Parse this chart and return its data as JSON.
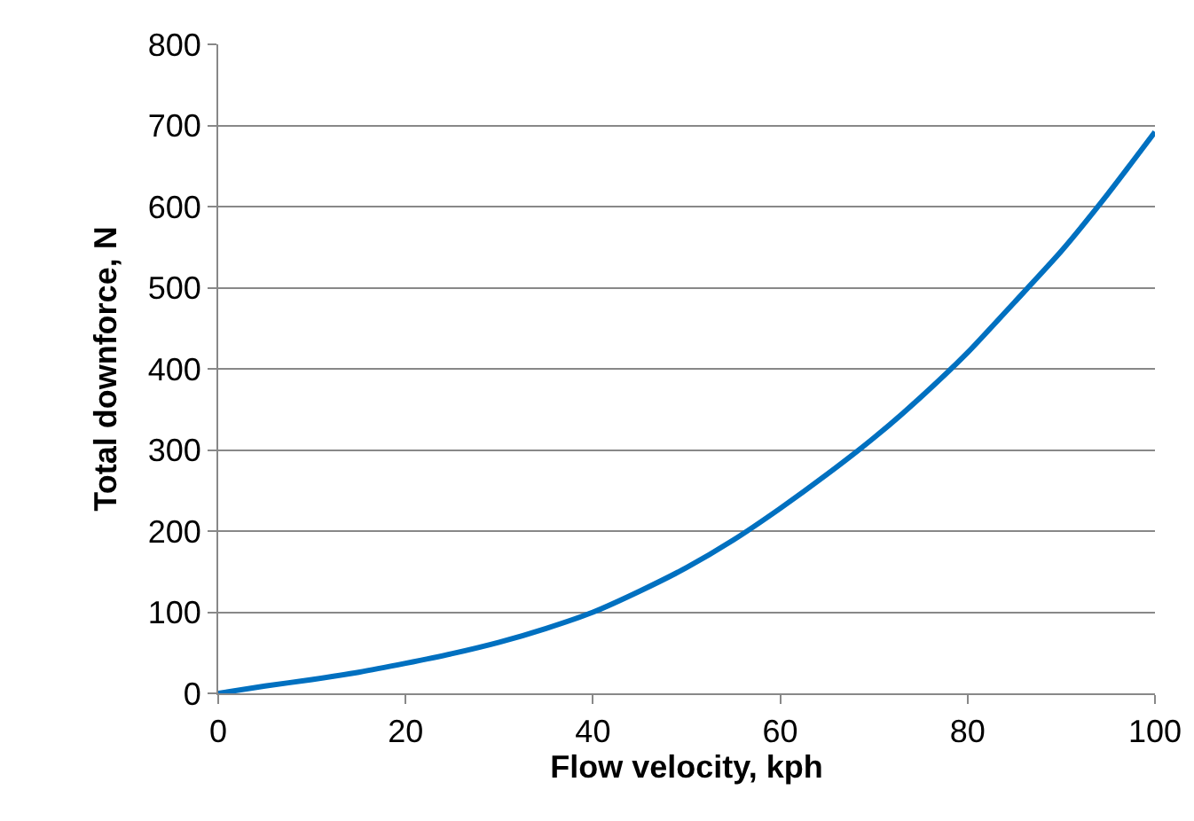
{
  "chart_data": {
    "type": "line",
    "xlabel": "Flow velocity, kph",
    "ylabel": "Total downforce, N",
    "x": [
      0,
      5,
      10,
      15,
      20,
      25,
      30,
      35,
      40,
      45,
      50,
      55,
      60,
      65,
      70,
      75,
      80,
      85,
      90,
      95,
      100
    ],
    "series": [
      {
        "color": "#0070c0",
        "values": [
          0,
          9,
          17,
          26,
          37,
          49,
          63,
          80,
          100,
          126,
          155,
          189,
          228,
          270,
          315,
          365,
          420,
          482,
          545,
          616,
          692
        ]
      }
    ],
    "xlim": [
      0,
      100
    ],
    "xticks": [
      0,
      20,
      40,
      60,
      80,
      100
    ],
    "ylim": [
      0,
      800
    ],
    "yticks": [
      0,
      100,
      200,
      300,
      400,
      500,
      600,
      700,
      800
    ],
    "grid": "y",
    "marker": "none",
    "line_style": "solid"
  }
}
